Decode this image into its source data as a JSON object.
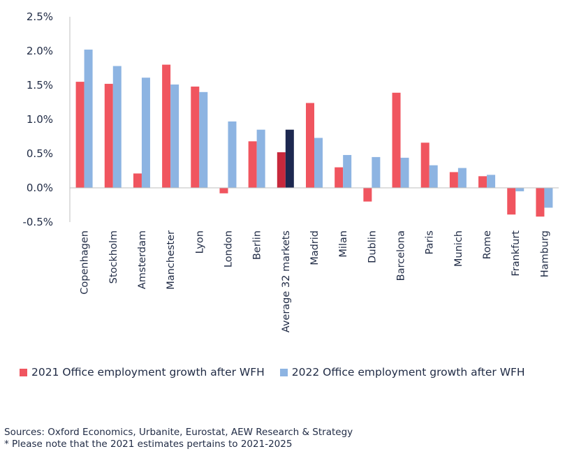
{
  "chart_data": {
    "type": "bar",
    "categories": [
      "Copenhagen",
      "Stockholm",
      "Amsterdam",
      "Manchester",
      "Lyon",
      "London",
      "Berlin",
      "Average 32 markets",
      "Madrid",
      "Milan",
      "Dublin",
      "Barcelona",
      "Paris",
      "Munich",
      "Rome",
      "Frankfurt",
      "Hamburg"
    ],
    "series": [
      {
        "name": "2021 Office employment growth after WFH",
        "color": "#f0555f",
        "values": [
          1.55,
          1.52,
          0.21,
          1.8,
          1.48,
          -0.08,
          0.68,
          0.52,
          1.24,
          0.3,
          -0.2,
          1.39,
          0.66,
          0.23,
          0.17,
          -0.39,
          -0.42
        ]
      },
      {
        "name": "2022 Office employment growth after WFH",
        "color": "#8db4e2",
        "values": [
          2.02,
          1.78,
          1.61,
          1.51,
          1.4,
          0.97,
          0.85,
          0.85,
          0.73,
          0.48,
          0.45,
          0.44,
          0.33,
          0.29,
          0.19,
          -0.05,
          -0.29
        ]
      }
    ],
    "highlight": {
      "category": "Average 32 markets",
      "colors": [
        "#c8283c",
        "#1d2850"
      ]
    },
    "ylim": [
      -0.5,
      2.5
    ],
    "yticks": [
      "-0.5%",
      "0.0%",
      "0.5%",
      "1.0%",
      "1.5%",
      "2.0%",
      "2.5%"
    ],
    "ytick_values": [
      -0.5,
      0,
      0.5,
      1.0,
      1.5,
      2.0,
      2.5
    ],
    "grid": false,
    "legend": "bottom"
  },
  "notes": {
    "line1": "Sources: Oxford Economics, Urbanite, Eurostat, AEW Research & Strategy",
    "line2": "* Please note that the 2021 estimates pertains to 2021-2025"
  }
}
